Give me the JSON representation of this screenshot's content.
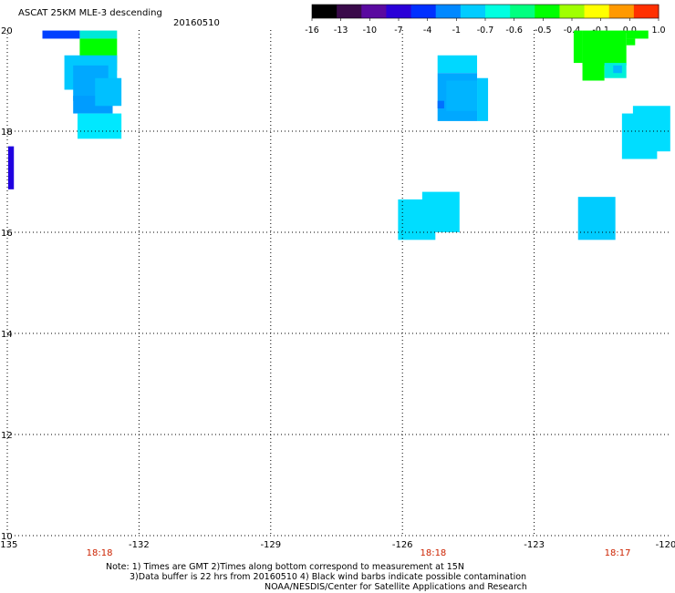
{
  "header": {
    "title": "ASCAT 25KM MLE-3 descending",
    "date": "20160510"
  },
  "colorbar": {
    "labels": [
      "-16",
      "-13",
      "-10",
      "-7",
      "-4",
      "-1",
      "-0.7",
      "-0.6",
      "-0.5",
      "-0.4",
      "-0.1",
      "0.0",
      "1.0"
    ],
    "colors": [
      "#000000",
      "#3a0a4a",
      "#5a0aa0",
      "#2a00d8",
      "#0030ff",
      "#0088ff",
      "#00ccff",
      "#00ffe0",
      "#00ff80",
      "#00ff00",
      "#a0ff00",
      "#ffff00",
      "#ff9900",
      "#ff3000"
    ]
  },
  "map": {
    "lon_range": [
      -135,
      -120
    ],
    "lat_range": [
      10,
      20
    ],
    "x_ticks": [
      "-135",
      "-132",
      "-129",
      "-126",
      "-123",
      "-120"
    ],
    "y_ticks": [
      "20",
      "18",
      "16",
      "14",
      "12",
      "10"
    ],
    "times": [
      {
        "label": "18:18",
        "lon": -132.9
      },
      {
        "label": "18:18",
        "lon": -125.3
      },
      {
        "label": "18:17",
        "lon": -121.1
      }
    ],
    "cells": [
      {
        "lon": [
          -134.2,
          -133.35
        ],
        "lat": [
          19.83,
          19.99
        ],
        "color": "#0040ff"
      },
      {
        "lon": [
          -133.35,
          -132.5
        ],
        "lat": [
          19.83,
          19.99
        ],
        "color": "#00e8d8"
      },
      {
        "lon": [
          -133.35,
          -132.5
        ],
        "lat": [
          19.35,
          19.83
        ],
        "color": "#00ff00"
      },
      {
        "lon": [
          -133.2,
          -132.5
        ],
        "lat": [
          19.2,
          19.35
        ],
        "color": "#00ff66"
      },
      {
        "lon": [
          -133.7,
          -132.5
        ],
        "lat": [
          18.82,
          19.5
        ],
        "color": "#00c8ff"
      },
      {
        "lon": [
          -133.5,
          -132.7
        ],
        "lat": [
          18.6,
          19.3
        ],
        "color": "#00a8ff"
      },
      {
        "lon": [
          -133.5,
          -132.6
        ],
        "lat": [
          18.35,
          18.7
        ],
        "color": "#009cff"
      },
      {
        "lon": [
          -133.0,
          -132.4
        ],
        "lat": [
          18.5,
          19.05
        ],
        "color": "#00c0ff"
      },
      {
        "lon": [
          -133.4,
          -132.4
        ],
        "lat": [
          17.85,
          18.35
        ],
        "color": "#00e8ff"
      },
      {
        "lon": [
          -134.98,
          -134.85
        ],
        "lat": [
          16.85,
          17.7
        ],
        "color": "#2000e0"
      },
      {
        "lon": [
          -125.2,
          -124.3
        ],
        "lat": [
          19.15,
          19.5
        ],
        "color": "#00d8ff"
      },
      {
        "lon": [
          -125.2,
          -124.3
        ],
        "lat": [
          18.2,
          19.15
        ],
        "color": "#00a8ff"
      },
      {
        "lon": [
          -125.0,
          -124.3
        ],
        "lat": [
          18.4,
          19.0
        ],
        "color": "#00b4ff"
      },
      {
        "lon": [
          -124.3,
          -124.05
        ],
        "lat": [
          18.2,
          19.05
        ],
        "color": "#00c8ff"
      },
      {
        "lon": [
          -125.2,
          -125.05
        ],
        "lat": [
          18.45,
          18.6
        ],
        "color": "#0070ff"
      },
      {
        "lon": [
          -126.1,
          -125.25
        ],
        "lat": [
          15.85,
          16.65
        ],
        "color": "#00ddff"
      },
      {
        "lon": [
          -125.55,
          -124.7
        ],
        "lat": [
          16.0,
          16.8
        ],
        "color": "#00ddff"
      },
      {
        "lon": [
          -121.9,
          -120.9
        ],
        "lat": [
          19.3,
          19.99
        ],
        "color": "#00ff00"
      },
      {
        "lon": [
          -122.1,
          -121.9
        ],
        "lat": [
          19.35,
          19.99
        ],
        "color": "#00ff00"
      },
      {
        "lon": [
          -121.9,
          -121.4
        ],
        "lat": [
          19.0,
          19.35
        ],
        "color": "#00ff00"
      },
      {
        "lon": [
          -121.4,
          -120.9
        ],
        "lat": [
          19.05,
          19.35
        ],
        "color": "#00f0d8"
      },
      {
        "lon": [
          -121.2,
          -121.0
        ],
        "lat": [
          19.15,
          19.3
        ],
        "color": "#00b8ff"
      },
      {
        "lon": [
          -120.9,
          -120.4
        ],
        "lat": [
          19.83,
          19.99
        ],
        "color": "#00ff00"
      },
      {
        "lon": [
          -120.9,
          -120.7
        ],
        "lat": [
          19.7,
          19.83
        ],
        "color": "#00ff00"
      },
      {
        "lon": [
          -120.75,
          -119.9
        ],
        "lat": [
          17.6,
          18.5
        ],
        "color": "#00ddff"
      },
      {
        "lon": [
          -121.0,
          -120.2
        ],
        "lat": [
          17.45,
          18.35
        ],
        "color": "#00ddff"
      },
      {
        "lon": [
          -122.0,
          -121.15
        ],
        "lat": [
          15.85,
          16.7
        ],
        "color": "#00ccff"
      }
    ]
  },
  "notes": {
    "line1": "Note: 1) Times are GMT 2)Times along bottom correspond to measurement at 15N",
    "line2": "3)Data buffer is 22 hrs from 20160510 4) Black wind barbs indicate possible contamination",
    "line3": "NOAA/NESDIS/Center for Satellite Applications and Research"
  }
}
